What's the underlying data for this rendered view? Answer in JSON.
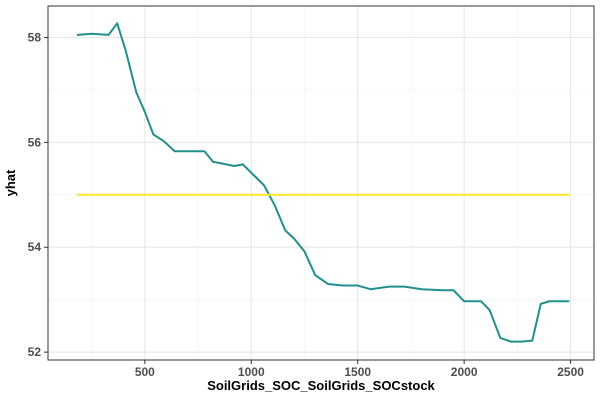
{
  "chart_data": {
    "type": "line",
    "title": "",
    "xlabel": "SoilGrids_SOC_SoilGrids_SOCstock",
    "ylabel": "yhat",
    "xlim": [
      45,
      2610
    ],
    "ylim": [
      51.85,
      58.6
    ],
    "xticks": [
      500,
      1000,
      1500,
      2000,
      2500
    ],
    "xtick_labels": [
      "500",
      "1000",
      "1500",
      "2000",
      "2500"
    ],
    "yticks": [
      52,
      54,
      56,
      58
    ],
    "ytick_labels": [
      "52",
      "54",
      "56",
      "58"
    ],
    "grid": true,
    "legend": "none",
    "series": [
      {
        "color": "#21908C",
        "x": [
          185,
          250,
          330,
          370,
          410,
          460,
          500,
          540,
          590,
          640,
          700,
          780,
          820,
          860,
          920,
          960,
          1000,
          1060,
          1110,
          1160,
          1200,
          1250,
          1300,
          1360,
          1430,
          1500,
          1560,
          1650,
          1720,
          1800,
          1900,
          1950,
          2000,
          2080,
          2120,
          2170,
          2220,
          2270,
          2320,
          2360,
          2400,
          2490
        ],
        "y": [
          58.05,
          58.07,
          58.05,
          58.27,
          57.75,
          56.95,
          56.58,
          56.15,
          56.02,
          55.83,
          55.83,
          55.83,
          55.63,
          55.6,
          55.55,
          55.58,
          55.42,
          55.18,
          54.8,
          54.32,
          54.17,
          53.92,
          53.47,
          53.3,
          53.27,
          53.27,
          53.2,
          53.25,
          53.25,
          53.2,
          53.18,
          53.18,
          52.97,
          52.97,
          52.8,
          52.27,
          52.2,
          52.2,
          52.22,
          52.92,
          52.97,
          52.97
        ]
      },
      {
        "color": "#FDE725",
        "x": [
          185,
          2490
        ],
        "y": [
          55.0,
          55.0
        ]
      }
    ]
  },
  "colors": {
    "panel_border": "#333333",
    "grid_major": "#e5e5e5",
    "grid_minor": "#f2f2f2",
    "tick_mark": "#333333"
  }
}
